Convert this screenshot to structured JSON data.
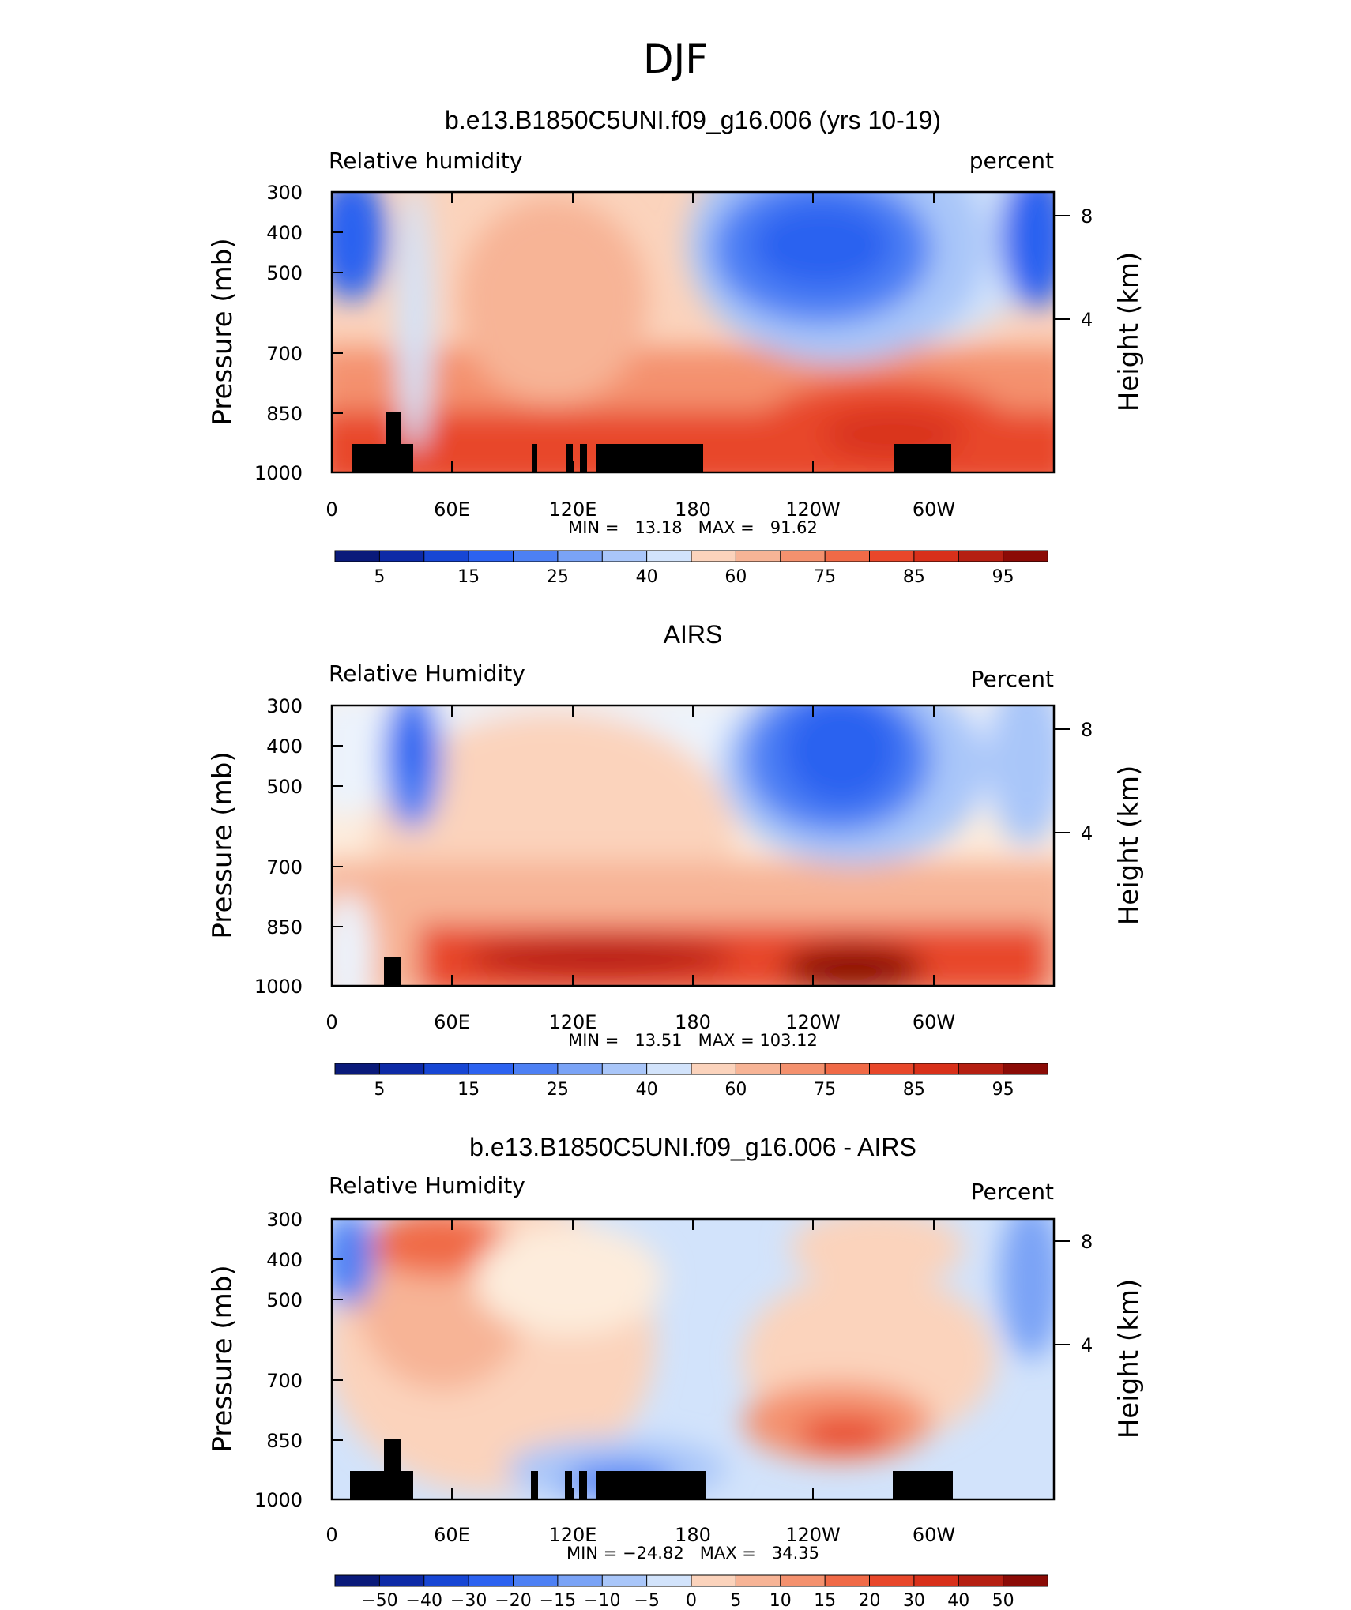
{
  "page_title": "DJF",
  "colors": {
    "blues": [
      "#0a1a7a",
      "#0d2aa6",
      "#1746d4",
      "#2c62f0",
      "#4d80f4",
      "#7aa3f6",
      "#a9c6f9",
      "#d2e3fb"
    ],
    "neutral_low": "#ecf3fc",
    "neutral_high": "#fdecdc",
    "reds": [
      "#fbd3bc",
      "#f7b496",
      "#f4916e",
      "#f06a47",
      "#e8472a",
      "#d8301a",
      "#b51f12",
      "#8b0b06"
    ],
    "land": "#000000"
  },
  "chart_data": [
    {
      "type": "heatmap",
      "title": "b.e13.B1850C5UNI.f09_g16.006 (yrs 10-19)",
      "left_label": "Relative humidity",
      "right_label": "percent",
      "ylabel": "Pressure (mb)",
      "y2label": "Height (km)",
      "y_ticks": [
        "300",
        "400",
        "500",
        "700",
        "850",
        "1000"
      ],
      "y2_ticks": [
        "8",
        "4"
      ],
      "x_ticks": [
        "0",
        "60E",
        "120E",
        "180",
        "120W",
        "60W"
      ],
      "xlim": [
        0,
        360
      ],
      "min_max": "MIN =   13.18   MAX =   91.62",
      "colorbar_labels": [
        "5",
        "15",
        "25",
        "40",
        "60",
        "75",
        "85",
        "95"
      ],
      "terrain": true
    },
    {
      "type": "heatmap",
      "title": "AIRS",
      "left_label": "Relative Humidity",
      "right_label": "Percent",
      "ylabel": "Pressure (mb)",
      "y2label": "Height (km)",
      "y_ticks": [
        "300",
        "400",
        "500",
        "700",
        "850",
        "1000"
      ],
      "y2_ticks": [
        "8",
        "4"
      ],
      "x_ticks": [
        "0",
        "60E",
        "120E",
        "180",
        "120W",
        "60W"
      ],
      "xlim": [
        0,
        360
      ],
      "min_max": "MIN =   13.51   MAX = 103.12",
      "colorbar_labels": [
        "5",
        "15",
        "25",
        "40",
        "60",
        "75",
        "85",
        "95"
      ],
      "terrain": "partial"
    },
    {
      "type": "heatmap",
      "title": "b.e13.B1850C5UNI.f09_g16.006 - AIRS",
      "left_label": "Relative Humidity",
      "right_label": "Percent",
      "ylabel": "Pressure (mb)",
      "y2label": "Height (km)",
      "y_ticks": [
        "300",
        "400",
        "500",
        "700",
        "850",
        "1000"
      ],
      "y2_ticks": [
        "8",
        "4"
      ],
      "x_ticks": [
        "0",
        "60E",
        "120E",
        "180",
        "120W",
        "60W"
      ],
      "xlim": [
        0,
        360
      ],
      "min_max": "MIN = −24.82   MAX =   34.35",
      "colorbar_labels": [
        "−50",
        "−40",
        "−30",
        "−20",
        "−15",
        "−10",
        "−5",
        "0",
        "5",
        "10",
        "15",
        "20",
        "30",
        "40",
        "50"
      ],
      "terrain": true
    }
  ]
}
